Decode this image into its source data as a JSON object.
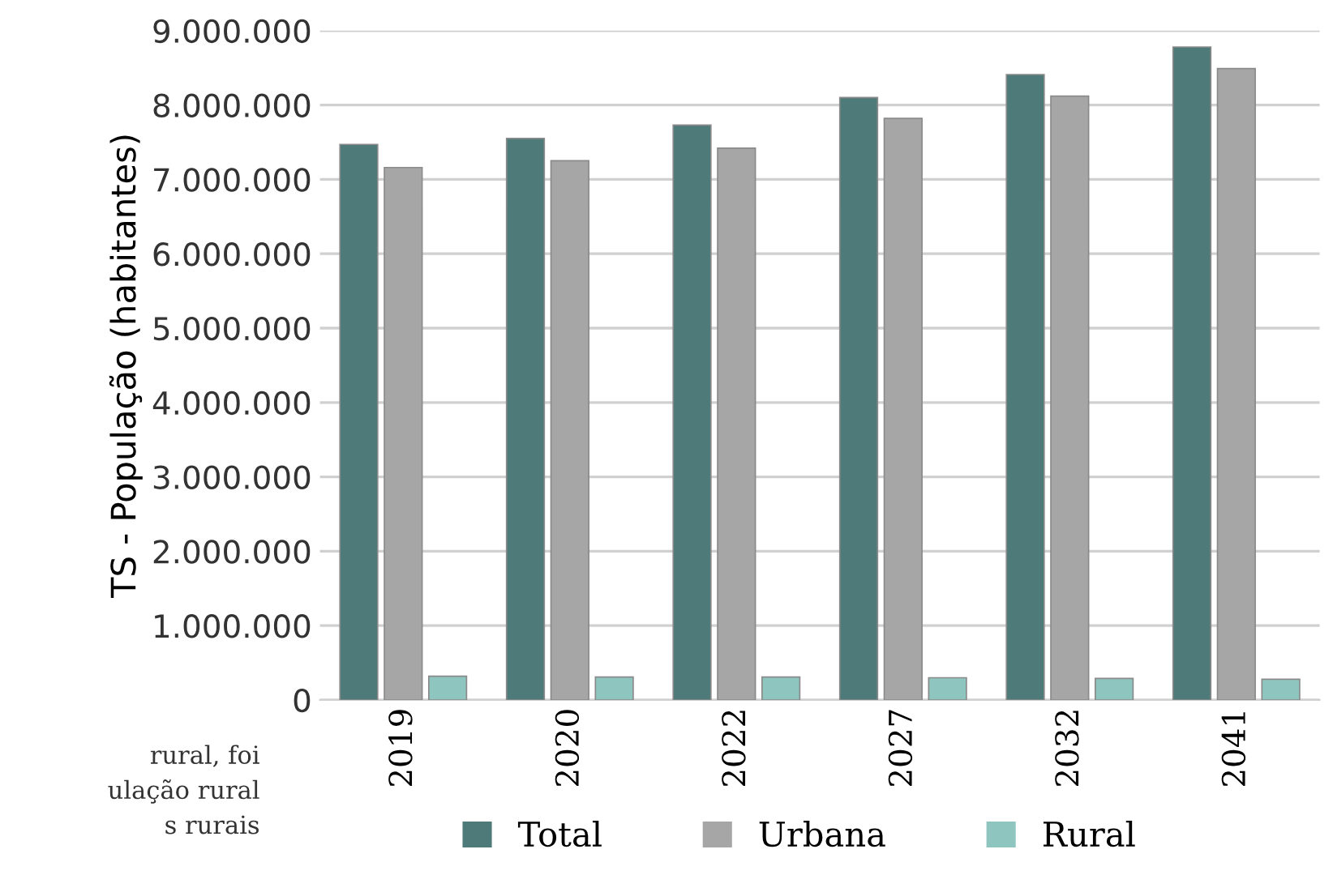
{
  "chart_data": {
    "type": "bar",
    "ylabel": "TS - População (habitantes)",
    "categories": [
      "2019",
      "2020",
      "2022",
      "2027",
      "2032",
      "2041"
    ],
    "series": [
      {
        "name": "Total",
        "color": "#4f7a7a",
        "values": [
          7470000,
          7550000,
          7730000,
          8100000,
          8410000,
          8780000
        ]
      },
      {
        "name": "Urbana",
        "color": "#a6a6a6",
        "values": [
          7160000,
          7250000,
          7420000,
          7820000,
          8120000,
          8490000
        ]
      },
      {
        "name": "Rural",
        "color": "#8fc5bf",
        "values": [
          320000,
          310000,
          310000,
          300000,
          290000,
          280000
        ]
      }
    ],
    "ylim": [
      0,
      9000000
    ],
    "yticks": [
      {
        "value": 0,
        "label": "0"
      },
      {
        "value": 1000000,
        "label": "1.000.000"
      },
      {
        "value": 2000000,
        "label": "2.000.000"
      },
      {
        "value": 3000000,
        "label": "3.000.000"
      },
      {
        "value": 4000000,
        "label": "4.000.000"
      },
      {
        "value": 5000000,
        "label": "5.000.000"
      },
      {
        "value": 6000000,
        "label": "6.000.000"
      },
      {
        "value": 7000000,
        "label": "7.000.000"
      },
      {
        "value": 8000000,
        "label": "8.000.000"
      },
      {
        "value": 9000000,
        "label": "9.000.000"
      }
    ],
    "grid": "y",
    "legend": "bottom",
    "annotations": [
      "rural, foi",
      "ulação rural",
      "s rurais"
    ]
  }
}
